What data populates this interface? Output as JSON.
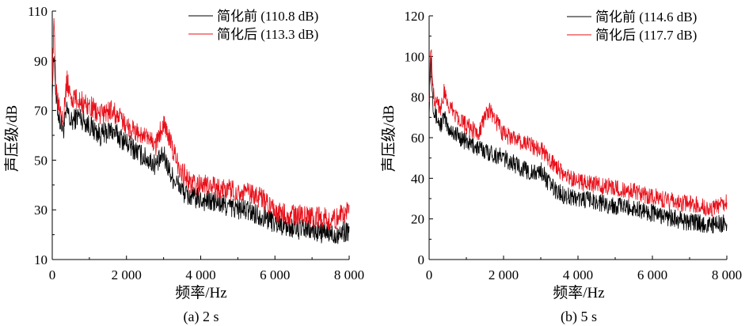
{
  "chart_data": [
    {
      "type": "line",
      "caption": "(a) 2 s",
      "xlabel": "频率/Hz",
      "ylabel": "声压级/dB",
      "xlim": [
        0,
        8000
      ],
      "ylim": [
        10,
        110
      ],
      "xticks": [
        0,
        2000,
        4000,
        6000,
        8000
      ],
      "xtick_labels": [
        "0",
        "2 000",
        "4 000",
        "6 000",
        "8 000"
      ],
      "yticks": [
        10,
        30,
        50,
        70,
        90,
        110
      ],
      "ytick_labels": [
        "10",
        "30",
        "50",
        "70",
        "90",
        "110"
      ],
      "legend_position": "top-right",
      "series": [
        {
          "name": "简化前 (110.8 dB)",
          "color": "#000000",
          "x": [
            0,
            50,
            100,
            150,
            200,
            300,
            400,
            500,
            700,
            1000,
            1300,
            1600,
            2000,
            2400,
            2800,
            3000,
            3200,
            3400,
            3600,
            3800,
            4000,
            4400,
            4800,
            5200,
            5600,
            6000,
            6400,
            6800,
            7200,
            7600,
            8000
          ],
          "values": [
            78,
            95,
            74,
            70,
            66,
            62,
            70,
            65,
            68,
            64,
            60,
            62,
            57,
            52,
            48,
            52,
            44,
            40,
            36,
            35,
            34,
            33,
            31,
            30,
            28,
            25,
            23,
            22,
            21,
            20,
            22
          ]
        },
        {
          "name": "简化后 (113.3 dB)",
          "color": "#e8101a",
          "x": [
            0,
            50,
            100,
            150,
            200,
            300,
            400,
            500,
            700,
            1000,
            1300,
            1600,
            2000,
            2400,
            2800,
            3000,
            3200,
            3400,
            3600,
            3800,
            4000,
            4400,
            4800,
            5200,
            5600,
            6000,
            6400,
            6800,
            7200,
            7600,
            8000
          ],
          "values": [
            85,
            105,
            80,
            75,
            72,
            68,
            82,
            75,
            74,
            72,
            68,
            70,
            64,
            60,
            56,
            66,
            56,
            48,
            43,
            40,
            40,
            39,
            38,
            37,
            35,
            29,
            28,
            28,
            27,
            26,
            30
          ]
        }
      ]
    },
    {
      "type": "line",
      "caption": "(b) 5 s",
      "xlabel": "频率/Hz",
      "ylabel": "声压级/dB",
      "xlim": [
        0,
        8000
      ],
      "ylim": [
        0,
        120
      ],
      "xticks": [
        0,
        2000,
        4000,
        6000,
        8000
      ],
      "xtick_labels": [
        "0",
        "2 000",
        "4 000",
        "6 000",
        "8 000"
      ],
      "yticks": [
        0,
        20,
        40,
        60,
        80,
        100,
        120
      ],
      "ytick_labels": [
        "0",
        "20",
        "40",
        "60",
        "80",
        "100",
        "120"
      ],
      "legend_position": "top-right",
      "series": [
        {
          "name": "简化前 (114.6 dB)",
          "color": "#000000",
          "x": [
            0,
            50,
            100,
            150,
            200,
            300,
            400,
            500,
            700,
            1000,
            1300,
            1600,
            2000,
            2400,
            2800,
            3000,
            3200,
            3400,
            3600,
            3800,
            4000,
            4400,
            4800,
            5200,
            5600,
            6000,
            6400,
            6800,
            7200,
            7600,
            8000
          ],
          "values": [
            75,
            100,
            78,
            72,
            70,
            66,
            70,
            65,
            62,
            58,
            55,
            53,
            50,
            46,
            42,
            44,
            38,
            34,
            32,
            31,
            30,
            29,
            27,
            26,
            25,
            23,
            21,
            19,
            18,
            17,
            18
          ]
        },
        {
          "name": "简化后 (117.7 dB)",
          "color": "#e8101a",
          "x": [
            0,
            50,
            100,
            150,
            200,
            300,
            400,
            500,
            700,
            1000,
            1300,
            1600,
            2000,
            2400,
            2800,
            3000,
            3200,
            3400,
            3600,
            3800,
            4000,
            4400,
            4800,
            5200,
            5600,
            6000,
            6400,
            6800,
            7200,
            7600,
            8000
          ],
          "values": [
            82,
            108,
            85,
            78,
            80,
            74,
            82,
            76,
            72,
            66,
            62,
            74,
            62,
            58,
            56,
            54,
            50,
            46,
            42,
            40,
            38,
            37,
            36,
            34,
            33,
            31,
            29,
            28,
            27,
            25,
            28
          ]
        }
      ]
    }
  ]
}
